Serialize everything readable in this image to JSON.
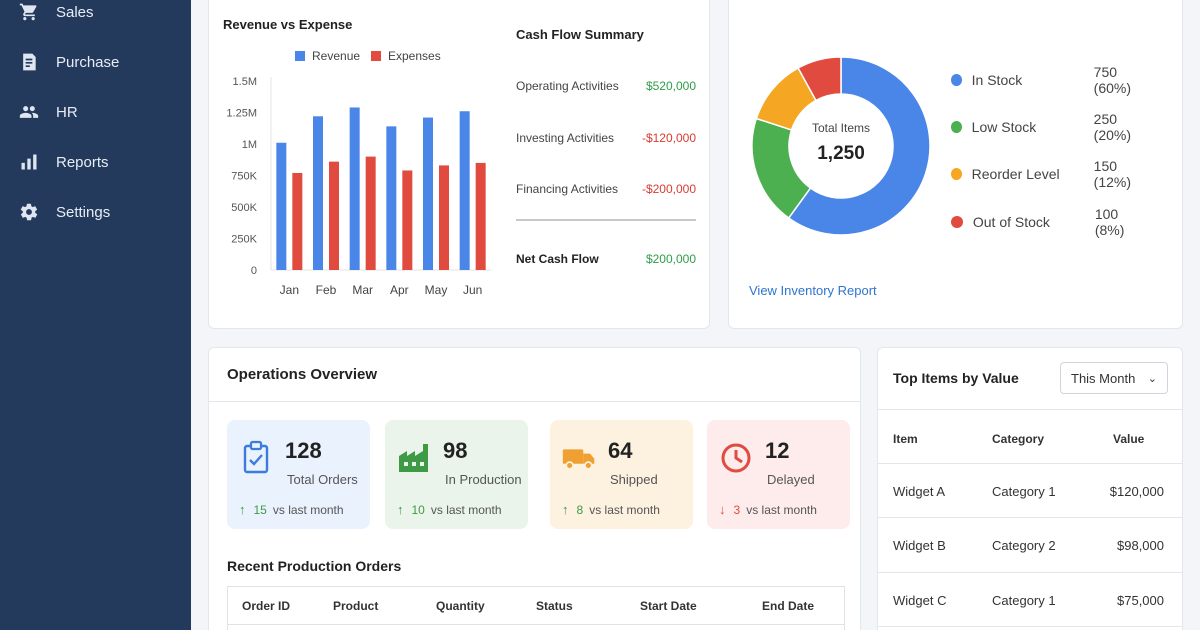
{
  "sidebar": {
    "items": [
      {
        "label": "Sales",
        "icon": "cart-icon"
      },
      {
        "label": "Purchase",
        "icon": "receipt-icon"
      },
      {
        "label": "HR",
        "icon": "people-icon"
      },
      {
        "label": "Reports",
        "icon": "bar-chart-icon"
      },
      {
        "label": "Settings",
        "icon": "gear-icon"
      }
    ]
  },
  "revenue": {
    "title": "Revenue vs Expense",
    "legend_revenue": "Revenue",
    "legend_expenses": "Expenses"
  },
  "chart_data": {
    "type": "bar",
    "title": "Revenue vs Expense",
    "categories": [
      "Jan",
      "Feb",
      "Mar",
      "Apr",
      "May",
      "Jun"
    ],
    "series": [
      {
        "name": "Revenue",
        "color": "#4a86e8",
        "values": [
          1010000,
          1220000,
          1290000,
          1140000,
          1210000,
          1260000
        ]
      },
      {
        "name": "Expenses",
        "color": "#e04a3f",
        "values": [
          770000,
          860000,
          900000,
          790000,
          830000,
          850000
        ]
      }
    ],
    "ylim": [
      0,
      1500000
    ],
    "yticks": [
      "0",
      "250K",
      "500K",
      "750K",
      "1M",
      "1.25M",
      "1.5M"
    ],
    "grid": false,
    "legend_position": "top"
  },
  "cashflow": {
    "title": "Cash Flow Summary",
    "rows": [
      {
        "label": "Operating Activities",
        "value": "$520,000",
        "sign": "pos"
      },
      {
        "label": "Investing Activities",
        "value": "-$120,000",
        "sign": "neg"
      },
      {
        "label": "Financing Activities",
        "value": "-$200,000",
        "sign": "neg"
      }
    ],
    "net_label": "Net Cash Flow",
    "net_value": "$200,000"
  },
  "inventory": {
    "center_label": "Total Items",
    "center_value": "1,250",
    "items": [
      {
        "label": "In Stock",
        "value": "750 (60%)",
        "count": 750,
        "color": "#4a86e8"
      },
      {
        "label": "Low Stock",
        "value": "250 (20%)",
        "count": 250,
        "color": "#4caf50"
      },
      {
        "label": "Reorder Level",
        "value": "150 (12%)",
        "count": 150,
        "color": "#f5a623"
      },
      {
        "label": "Out of Stock",
        "value": "100 (8%)",
        "count": 100,
        "color": "#e04a3f"
      }
    ],
    "link": "View Inventory Report"
  },
  "operations": {
    "title": "Operations Overview",
    "kpis": [
      {
        "value": "128",
        "label": "Total Orders",
        "trend_value": "15",
        "trend_text": "vs last month",
        "dir": "up",
        "icon": "clipboard-icon",
        "bg": "#eaf2fd",
        "accent": "#3b7ddd"
      },
      {
        "value": "98",
        "label": "In Production",
        "trend_value": "10",
        "trend_text": "vs last month",
        "dir": "up",
        "icon": "factory-icon",
        "bg": "#eaf4ea",
        "accent": "#3e9a45"
      },
      {
        "value": "64",
        "label": "Shipped",
        "trend_value": "8",
        "trend_text": "vs last month",
        "dir": "up",
        "icon": "truck-icon",
        "bg": "#fdf1e0",
        "accent": "#f0a030"
      },
      {
        "value": "12",
        "label": "Delayed",
        "trend_value": "3",
        "trend_text": "vs last month",
        "dir": "down",
        "icon": "clock-icon",
        "bg": "#fdeceb",
        "accent": "#e04a3f"
      }
    ],
    "recent_title": "Recent Production Orders",
    "recent_headers": [
      "Order ID",
      "Product",
      "Quantity",
      "Status",
      "Start Date",
      "End Date"
    ]
  },
  "top_items": {
    "title": "Top Items by Value",
    "filter": "This Month",
    "headers": [
      "Item",
      "Category",
      "Value"
    ],
    "rows": [
      [
        "Widget A",
        "Category 1",
        "$120,000"
      ],
      [
        "Widget B",
        "Category 2",
        "$98,000"
      ],
      [
        "Widget C",
        "Category 1",
        "$75,000"
      ]
    ]
  }
}
